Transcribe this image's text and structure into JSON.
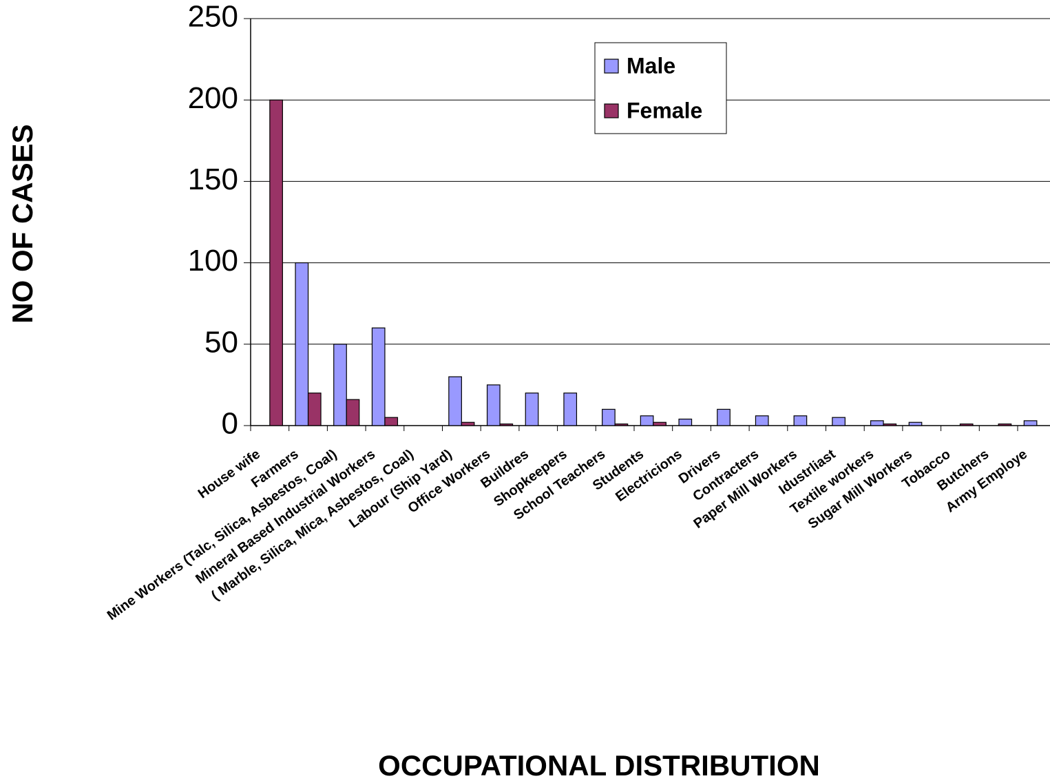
{
  "chart_data": {
    "type": "bar",
    "xlabel": "OCCUPATIONAL DISTRIBUTION",
    "ylabel": "NO OF CASES",
    "categories": [
      "House wife",
      "Farmers",
      "Mine Workers (Talc, Silica, Asbestos, Coal)",
      "Mineral Based Industrial Workers",
      "( Marble, Silica, Mica, Asbestos, Coal)",
      "Labour (Ship Yard)",
      "Office Workers",
      "Buildres",
      "Shopkeepers",
      "School Teachers",
      "Students",
      "Electricions",
      "Drivers",
      "Contracters",
      "Paper Mill Workers",
      "Idustrliast",
      "Textile workers",
      "Sugar Mill Workers",
      "Tobacco",
      "Butchers",
      "Army Employe"
    ],
    "series": [
      {
        "name": "Male",
        "color": "#9999ff",
        "values": [
          0,
          100,
          50,
          60,
          0,
          30,
          25,
          20,
          20,
          10,
          6,
          4,
          10,
          6,
          6,
          5,
          3,
          2,
          0,
          0,
          3
        ]
      },
      {
        "name": "Female",
        "color": "#993366",
        "values": [
          200,
          20,
          16,
          5,
          0,
          2,
          1,
          0,
          0,
          1,
          2,
          0,
          0,
          0,
          0,
          0,
          1,
          0,
          1,
          1,
          0
        ]
      }
    ],
    "ylim": [
      0,
      250
    ],
    "yticks": [
      0,
      50,
      100,
      150,
      200,
      250
    ],
    "grid": true,
    "legend": "top-right"
  }
}
